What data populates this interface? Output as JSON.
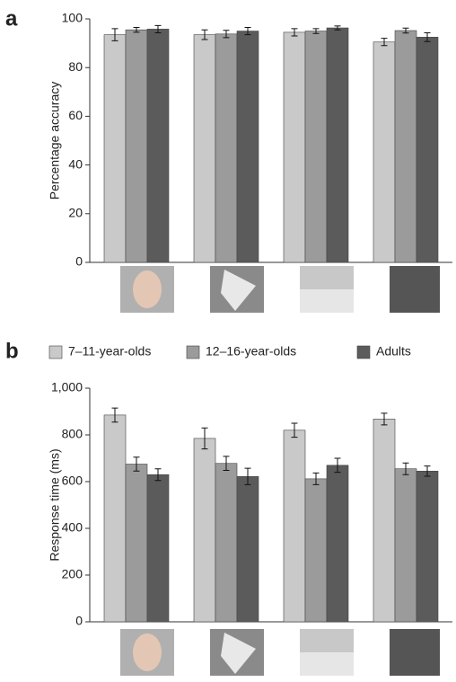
{
  "chart_data": [
    {
      "type": "bar",
      "panel_label": "a",
      "y_label": "Percentage accuracy",
      "categories": [
        null,
        null,
        null,
        null
      ],
      "ylim": [
        0,
        100
      ],
      "yticks": [
        0,
        20,
        40,
        60,
        80,
        100
      ],
      "series": [
        {
          "color": "#c9c9c9",
          "values": [
            93.5,
            93.5,
            94.5,
            90.5
          ],
          "errors": [
            2.5,
            2,
            1.5,
            1.5
          ]
        },
        {
          "color": "#9b9b9b",
          "values": [
            95.5,
            93.8,
            95,
            95.2
          ],
          "errors": [
            1,
            1.5,
            1,
            1
          ]
        },
        {
          "color": "#5b5b5b",
          "values": [
            95.8,
            95,
            96.3,
            92.5
          ],
          "errors": [
            1.5,
            1.5,
            0.8,
            1.8
          ]
        }
      ]
    },
    {
      "type": "bar",
      "panel_label": "b",
      "y_label": "Response time (ms)",
      "categories": [
        null,
        null,
        null,
        null
      ],
      "ylim": [
        0,
        1000
      ],
      "yticks": [
        0,
        200,
        400,
        600,
        800,
        {
          "value": 1000,
          "label": "1,000"
        }
      ],
      "legend": "top",
      "series": [
        {
          "name": "7–11-year-olds",
          "color": "#c9c9c9",
          "values": [
            885,
            785,
            820,
            868
          ],
          "errors": [
            30,
            45,
            30,
            25
          ]
        },
        {
          "name": "12–16-year-olds",
          "color": "#9b9b9b",
          "values": [
            675,
            678,
            612,
            655
          ],
          "errors": [
            30,
            30,
            25,
            25
          ]
        },
        {
          "name": "Adults",
          "color": "#5b5b5b",
          "values": [
            630,
            622,
            670,
            645
          ],
          "errors": [
            25,
            35,
            30,
            22
          ]
        }
      ]
    }
  ]
}
